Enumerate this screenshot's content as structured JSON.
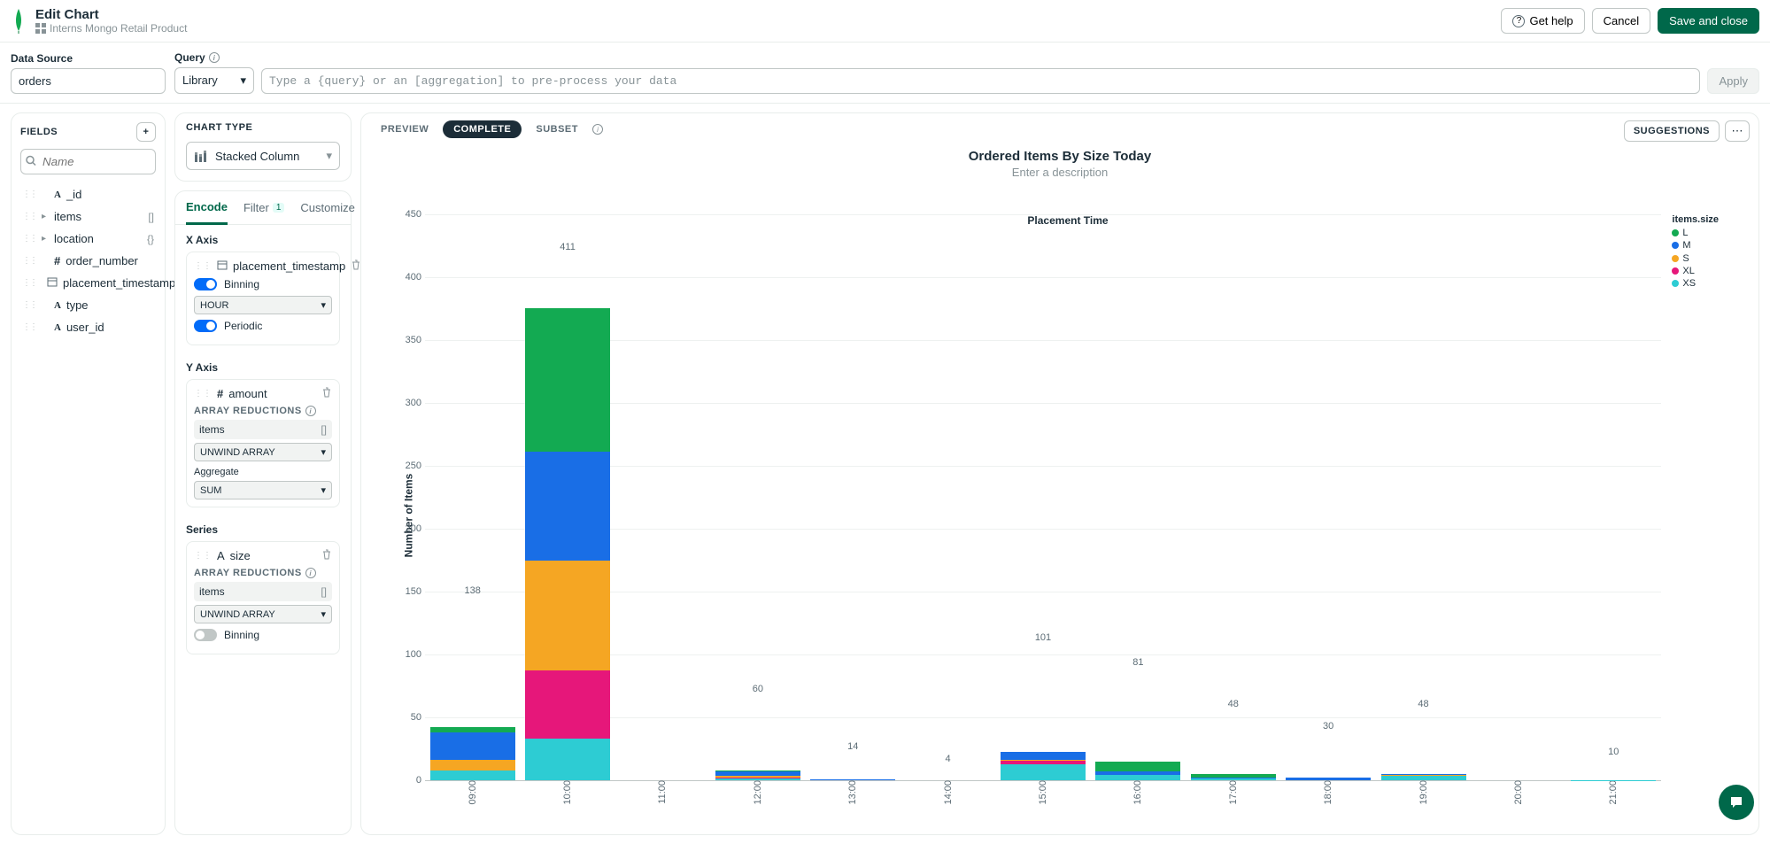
{
  "header": {
    "title": "Edit Chart",
    "subtitle": "Interns Mongo Retail Product",
    "getHelp": "Get help",
    "cancel": "Cancel",
    "save": "Save and close"
  },
  "query": {
    "dataSourceLabel": "Data Source",
    "dataSource": "orders",
    "queryLabel": "Query",
    "library": "Library",
    "placeholder": "Type a {query} or an [aggregation] to pre-process your data",
    "apply": "Apply"
  },
  "fields": {
    "label": "FIELDS",
    "searchPlaceholder": "Name",
    "items": [
      {
        "type": "A",
        "name": "_id",
        "tail": "",
        "caret": false
      },
      {
        "type": "",
        "name": "items",
        "tail": "[]",
        "caret": true
      },
      {
        "type": "",
        "name": "location",
        "tail": "{}",
        "caret": true
      },
      {
        "type": "#",
        "name": "order_number",
        "tail": "",
        "caret": false
      },
      {
        "type": "cal",
        "name": "placement_timestamp",
        "tail": "",
        "caret": false
      },
      {
        "type": "A",
        "name": "type",
        "tail": "",
        "caret": false
      },
      {
        "type": "A",
        "name": "user_id",
        "tail": "",
        "caret": false
      }
    ]
  },
  "chartType": {
    "label": "CHART TYPE",
    "value": "Stacked Column"
  },
  "encTabs": {
    "encode": "Encode",
    "filter": "Filter",
    "filterCount": "1",
    "customize": "Customize"
  },
  "xaxis": {
    "label": "X Axis",
    "field": "placement_timestamp",
    "binning": "Binning",
    "binUnit": "HOUR",
    "periodic": "Periodic"
  },
  "yaxis": {
    "label": "Y Axis",
    "field": "amount",
    "arrRed": "ARRAY REDUCTIONS",
    "items": "items",
    "unwind": "UNWIND ARRAY",
    "aggLabel": "Aggregate",
    "agg": "SUM"
  },
  "series": {
    "label": "Series",
    "field": "size",
    "arrRed": "ARRAY REDUCTIONS",
    "items": "items",
    "unwind": "UNWIND ARRAY",
    "binning": "Binning"
  },
  "viewtabs": {
    "preview": "PREVIEW",
    "complete": "COMPLETE",
    "subset": "SUBSET",
    "suggestions": "SUGGESTIONS"
  },
  "chart": {
    "title": "Ordered Items By Size Today",
    "desc": "Enter a description",
    "yAxisLabel": "Number of Items",
    "xAxisLabel": "Placement Time",
    "yMax": 450,
    "yTickStep": 50,
    "legendTitle": "items.size",
    "colors": {
      "L": "#13aa52",
      "M": "#196ee6",
      "S": "#f5a623",
      "XL": "#e6177a",
      "XS": "#2dccd3"
    },
    "categories": [
      "09:00",
      "10:00",
      "11:00",
      "12:00",
      "13:00",
      "14:00",
      "15:00",
      "16:00",
      "17:00",
      "18:00",
      "19:00",
      "20:00",
      "21:00"
    ],
    "series": [
      "L",
      "M",
      "S",
      "XL",
      "XS"
    ],
    "data": [
      {
        "total": 138,
        "L": 15,
        "M": 70,
        "S": 28,
        "XL": 0,
        "XS": 25
      },
      {
        "total": 411,
        "L": 125,
        "M": 95,
        "S": 95,
        "XL": 60,
        "XS": 36
      },
      {
        "total": 0
      },
      {
        "total": 60,
        "L": 6,
        "M": 30,
        "S": 8,
        "XL": 4,
        "XS": 12
      },
      {
        "total": 14,
        "M": 14
      },
      {
        "total": 4,
        "M": 4
      },
      {
        "total": 101,
        "M": 30,
        "S": 3,
        "XL": 10,
        "XS": 58
      },
      {
        "total": 81,
        "L": 40,
        "M": 18,
        "XS": 23
      },
      {
        "total": 48,
        "L": 25,
        "M": 3,
        "XS": 20
      },
      {
        "total": 30,
        "M": 30
      },
      {
        "total": 48,
        "M": 10,
        "S": 8,
        "XS": 30
      },
      {
        "total": 0
      },
      {
        "total": 10,
        "XS": 10
      }
    ]
  }
}
